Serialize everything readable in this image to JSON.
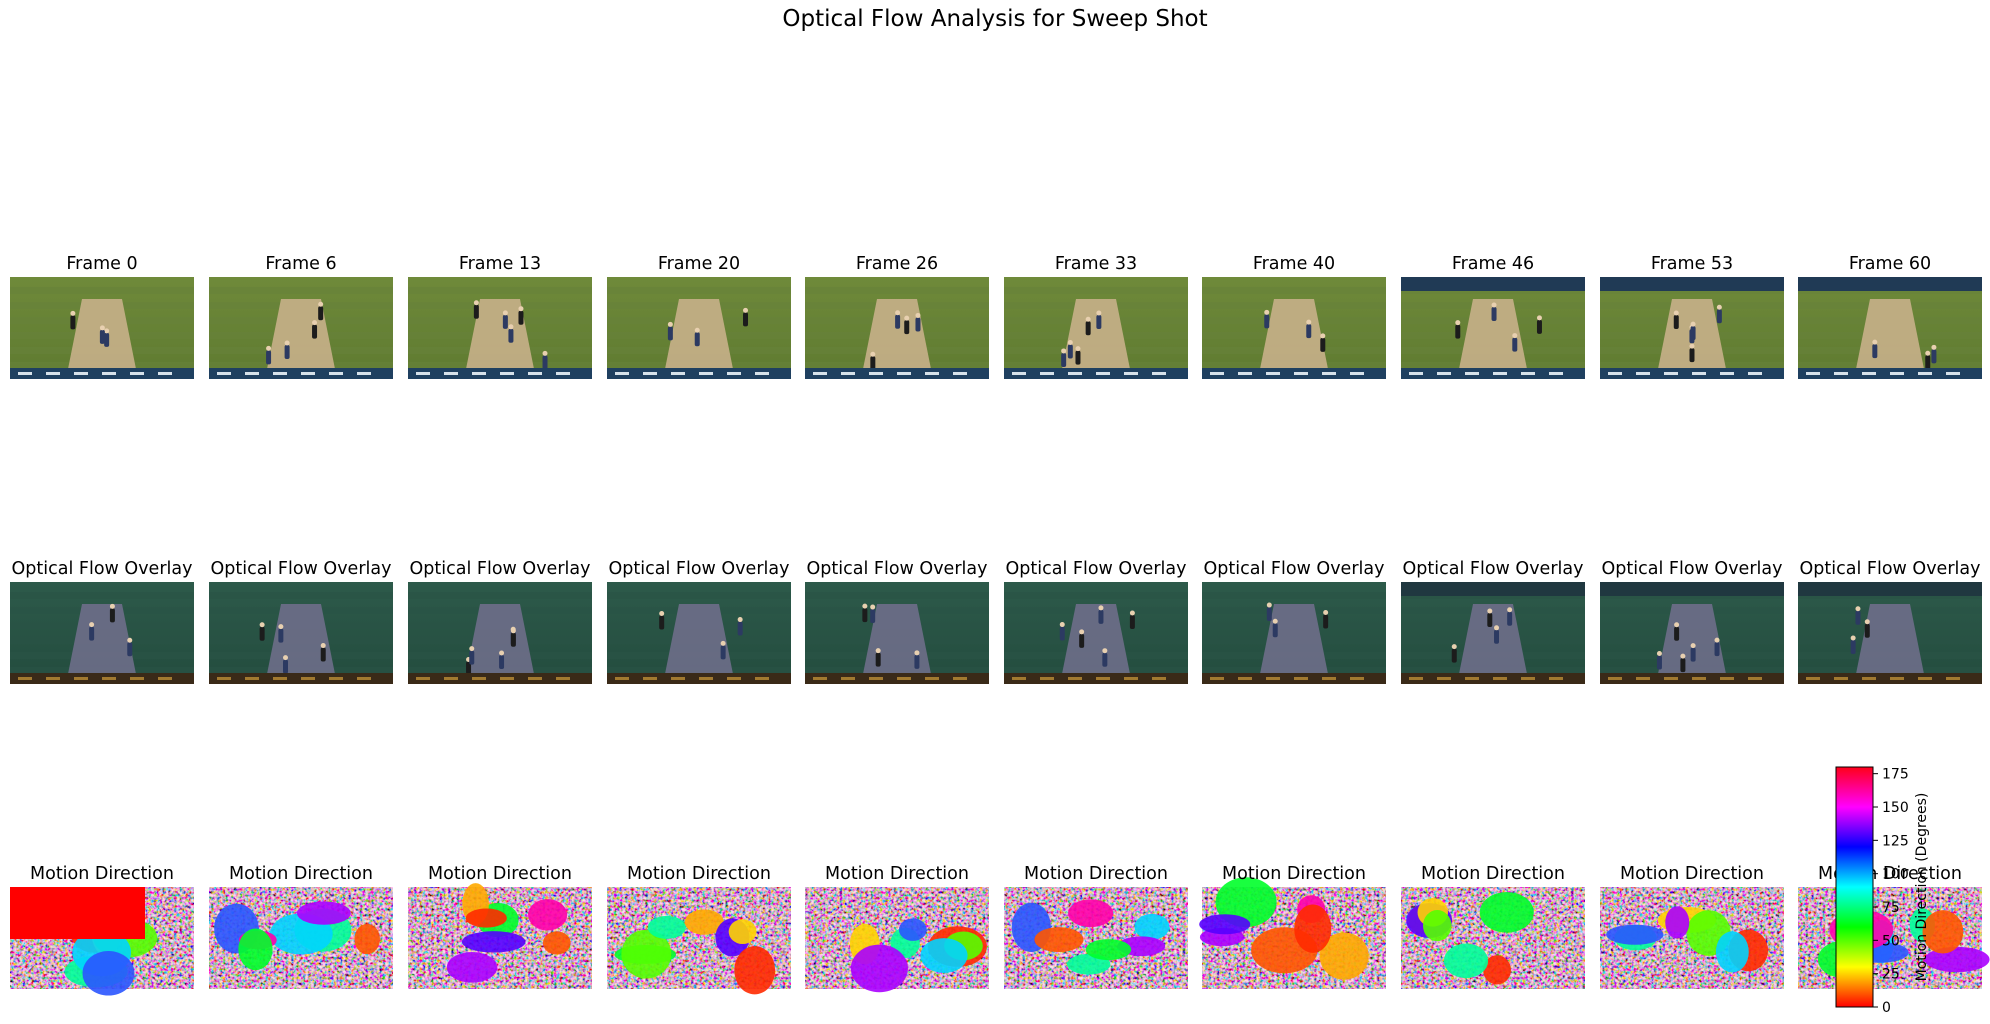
{
  "figure": {
    "title": "Optical Flow Analysis for Sweep Shot"
  },
  "chart_data": {
    "type": "image-grid",
    "title": "Optical Flow Analysis for Sweep Shot",
    "rows": [
      {
        "row": "frames",
        "panel_titles": [
          "Frame 0",
          "Frame 6",
          "Frame 13",
          "Frame 20",
          "Frame 26",
          "Frame 33",
          "Frame 40",
          "Frame 46",
          "Frame 53",
          "Frame 60"
        ]
      },
      {
        "row": "overlay",
        "panel_titles": [
          "Optical Flow Overlay",
          "Optical Flow Overlay",
          "Optical Flow Overlay",
          "Optical Flow Overlay",
          "Optical Flow Overlay",
          "Optical Flow Overlay",
          "Optical Flow Overlay",
          "Optical Flow Overlay",
          "Optical Flow Overlay",
          "Optical Flow Overlay"
        ]
      },
      {
        "row": "direction",
        "panel_titles": [
          "Motion Direction",
          "Motion Direction",
          "Motion Direction",
          "Motion Direction",
          "Motion Direction",
          "Motion Direction",
          "Motion Direction",
          "Motion Direction",
          "Motion Direction",
          "Motion Direction"
        ]
      }
    ],
    "colorbar": {
      "label": "Motion Direction (Degrees)",
      "colormap": "hsv",
      "ticks": [
        0,
        25,
        50,
        75,
        100,
        125,
        150,
        175
      ],
      "range": [
        0,
        180
      ]
    }
  }
}
